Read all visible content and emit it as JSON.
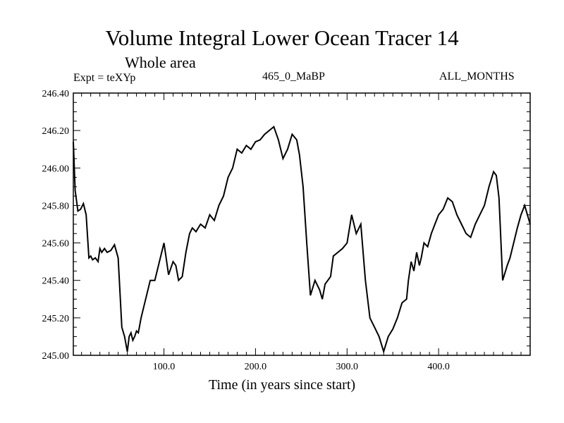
{
  "header": {
    "title": "Volume Integral Lower Ocean Tracer 14",
    "subtitle": "Whole area",
    "expt_label": "Expt = teXYp",
    "period_label": "465_0_MaBP",
    "months_label": "ALL_MONTHS"
  },
  "chart_data": {
    "type": "line",
    "title": "Volume Integral Lower Ocean Tracer 14",
    "subtitle": "Whole area",
    "xlabel": "Time (in years since start)",
    "ylabel": "",
    "xlim": [
      1,
      500
    ],
    "ylim": [
      245.0,
      246.4
    ],
    "x_ticks": [
      100,
      200,
      300,
      400
    ],
    "x_tick_labels": [
      "100.0",
      "200.0",
      "300.0",
      "400.0"
    ],
    "y_ticks": [
      245.0,
      245.2,
      245.4,
      245.6,
      245.8,
      246.0,
      246.2,
      246.4
    ],
    "y_tick_labels": [
      "245.00",
      "245.20",
      "245.40",
      "245.60",
      "245.80",
      "246.00",
      "246.20",
      "246.40"
    ],
    "grid": false,
    "series": [
      {
        "color": "#000000",
        "x": [
          1,
          3,
          6,
          9,
          12,
          15,
          18,
          20,
          22,
          25,
          28,
          30,
          32,
          35,
          38,
          42,
          46,
          50,
          54,
          57,
          60,
          62,
          64,
          66,
          68,
          70,
          72,
          75,
          80,
          85,
          90,
          95,
          100,
          105,
          110,
          113,
          116,
          120,
          124,
          128,
          131,
          135,
          140,
          145,
          150,
          155,
          160,
          165,
          170,
          175,
          180,
          185,
          190,
          195,
          200,
          205,
          210,
          215,
          220,
          225,
          230,
          235,
          240,
          245,
          248,
          252,
          256,
          260,
          265,
          270,
          273,
          276,
          279,
          282,
          285,
          290,
          295,
          300,
          305,
          310,
          315,
          320,
          325,
          330,
          335,
          340,
          345,
          350,
          355,
          360,
          365,
          367,
          370,
          373,
          376,
          379,
          381,
          384,
          388,
          392,
          396,
          400,
          405,
          410,
          415,
          420,
          425,
          430,
          435,
          440,
          445,
          450,
          455,
          460,
          463,
          466,
          470,
          475,
          478,
          482,
          486,
          490,
          494,
          497,
          500
        ],
        "y": [
          246.14,
          245.88,
          245.77,
          245.78,
          245.81,
          245.75,
          245.52,
          245.53,
          245.51,
          245.52,
          245.5,
          245.57,
          245.55,
          245.57,
          245.55,
          245.56,
          245.59,
          245.52,
          245.15,
          245.1,
          245.02,
          245.1,
          245.12,
          245.08,
          245.1,
          245.13,
          245.12,
          245.2,
          245.3,
          245.4,
          245.4,
          245.5,
          245.6,
          245.43,
          245.5,
          245.48,
          245.4,
          245.42,
          245.55,
          245.65,
          245.68,
          245.66,
          245.7,
          245.68,
          245.75,
          245.72,
          245.8,
          245.85,
          245.95,
          246.0,
          246.1,
          246.08,
          246.12,
          246.1,
          246.14,
          246.15,
          246.18,
          246.2,
          246.22,
          246.15,
          246.05,
          246.1,
          246.18,
          246.15,
          246.07,
          245.9,
          245.6,
          245.32,
          245.4,
          245.35,
          245.3,
          245.38,
          245.4,
          245.42,
          245.53,
          245.55,
          245.57,
          245.6,
          245.75,
          245.65,
          245.7,
          245.4,
          245.2,
          245.15,
          245.1,
          245.02,
          245.1,
          245.14,
          245.2,
          245.28,
          245.3,
          245.4,
          245.5,
          245.45,
          245.55,
          245.48,
          245.52,
          245.6,
          245.58,
          245.65,
          245.7,
          245.75,
          245.78,
          245.84,
          245.82,
          245.75,
          245.7,
          245.65,
          245.63,
          245.7,
          245.75,
          245.8,
          245.9,
          245.98,
          245.96,
          245.84,
          245.4,
          245.48,
          245.52,
          245.6,
          245.68,
          245.75,
          245.8,
          245.75,
          245.7
        ]
      }
    ]
  }
}
